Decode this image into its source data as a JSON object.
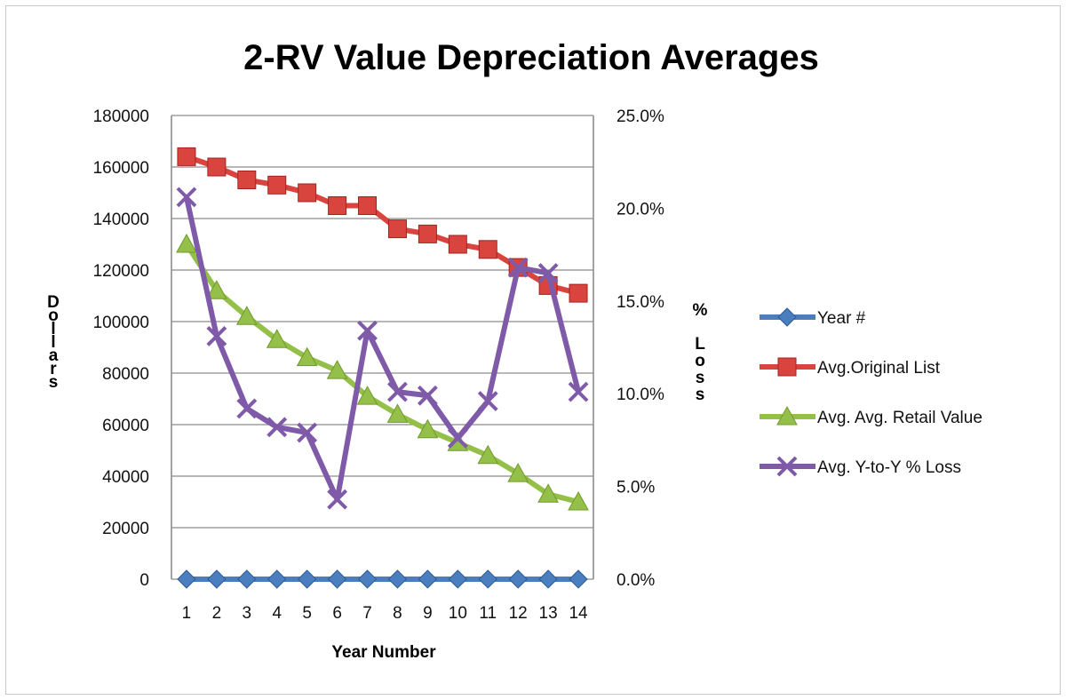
{
  "chart_data": {
    "type": "line",
    "title": "2-RV Value Depreciation Averages",
    "xlabel": "Year Number",
    "ylabel": "Dollars",
    "y2label": "% Loss",
    "categories": [
      "1",
      "2",
      "3",
      "4",
      "5",
      "6",
      "7",
      "8",
      "9",
      "10",
      "11",
      "12",
      "13",
      "14"
    ],
    "ylim": [
      0,
      180000
    ],
    "y_ticks": [
      "0",
      "20000",
      "40000",
      "60000",
      "80000",
      "100000",
      "120000",
      "140000",
      "160000",
      "180000"
    ],
    "y2lim": [
      0,
      25
    ],
    "y2_ticks": [
      "0.0%",
      "5.0%",
      "10.0%",
      "15.0%",
      "20.0%",
      "25.0%"
    ],
    "grid": true,
    "legend_position": "right",
    "series": [
      {
        "name": "Year #",
        "axis": "left",
        "color": "#4a7ebf",
        "marker": "diamond",
        "values": [
          1,
          2,
          3,
          4,
          5,
          6,
          7,
          8,
          9,
          10,
          11,
          12,
          13,
          14
        ]
      },
      {
        "name": "Avg.Original List",
        "axis": "left",
        "color": "#d9443f",
        "marker": "square",
        "values": [
          164000,
          160000,
          155000,
          153000,
          150000,
          145000,
          145000,
          136000,
          134000,
          130000,
          128000,
          121000,
          114000,
          111000
        ]
      },
      {
        "name": "Avg. Avg. Retail Value",
        "axis": "left",
        "color": "#94c04a",
        "marker": "triangle",
        "values": [
          130000,
          112000,
          102000,
          93000,
          86000,
          81000,
          71000,
          64000,
          58000,
          53000,
          48000,
          41000,
          33000,
          30000
        ]
      },
      {
        "name": "Avg. Y-to-Y % Loss",
        "axis": "right",
        "color": "#7e5aa8",
        "marker": "x",
        "values": [
          20.6,
          13.1,
          9.2,
          8.2,
          7.9,
          4.3,
          13.4,
          10.1,
          9.9,
          7.6,
          9.6,
          16.8,
          16.5,
          10.1
        ]
      }
    ]
  }
}
